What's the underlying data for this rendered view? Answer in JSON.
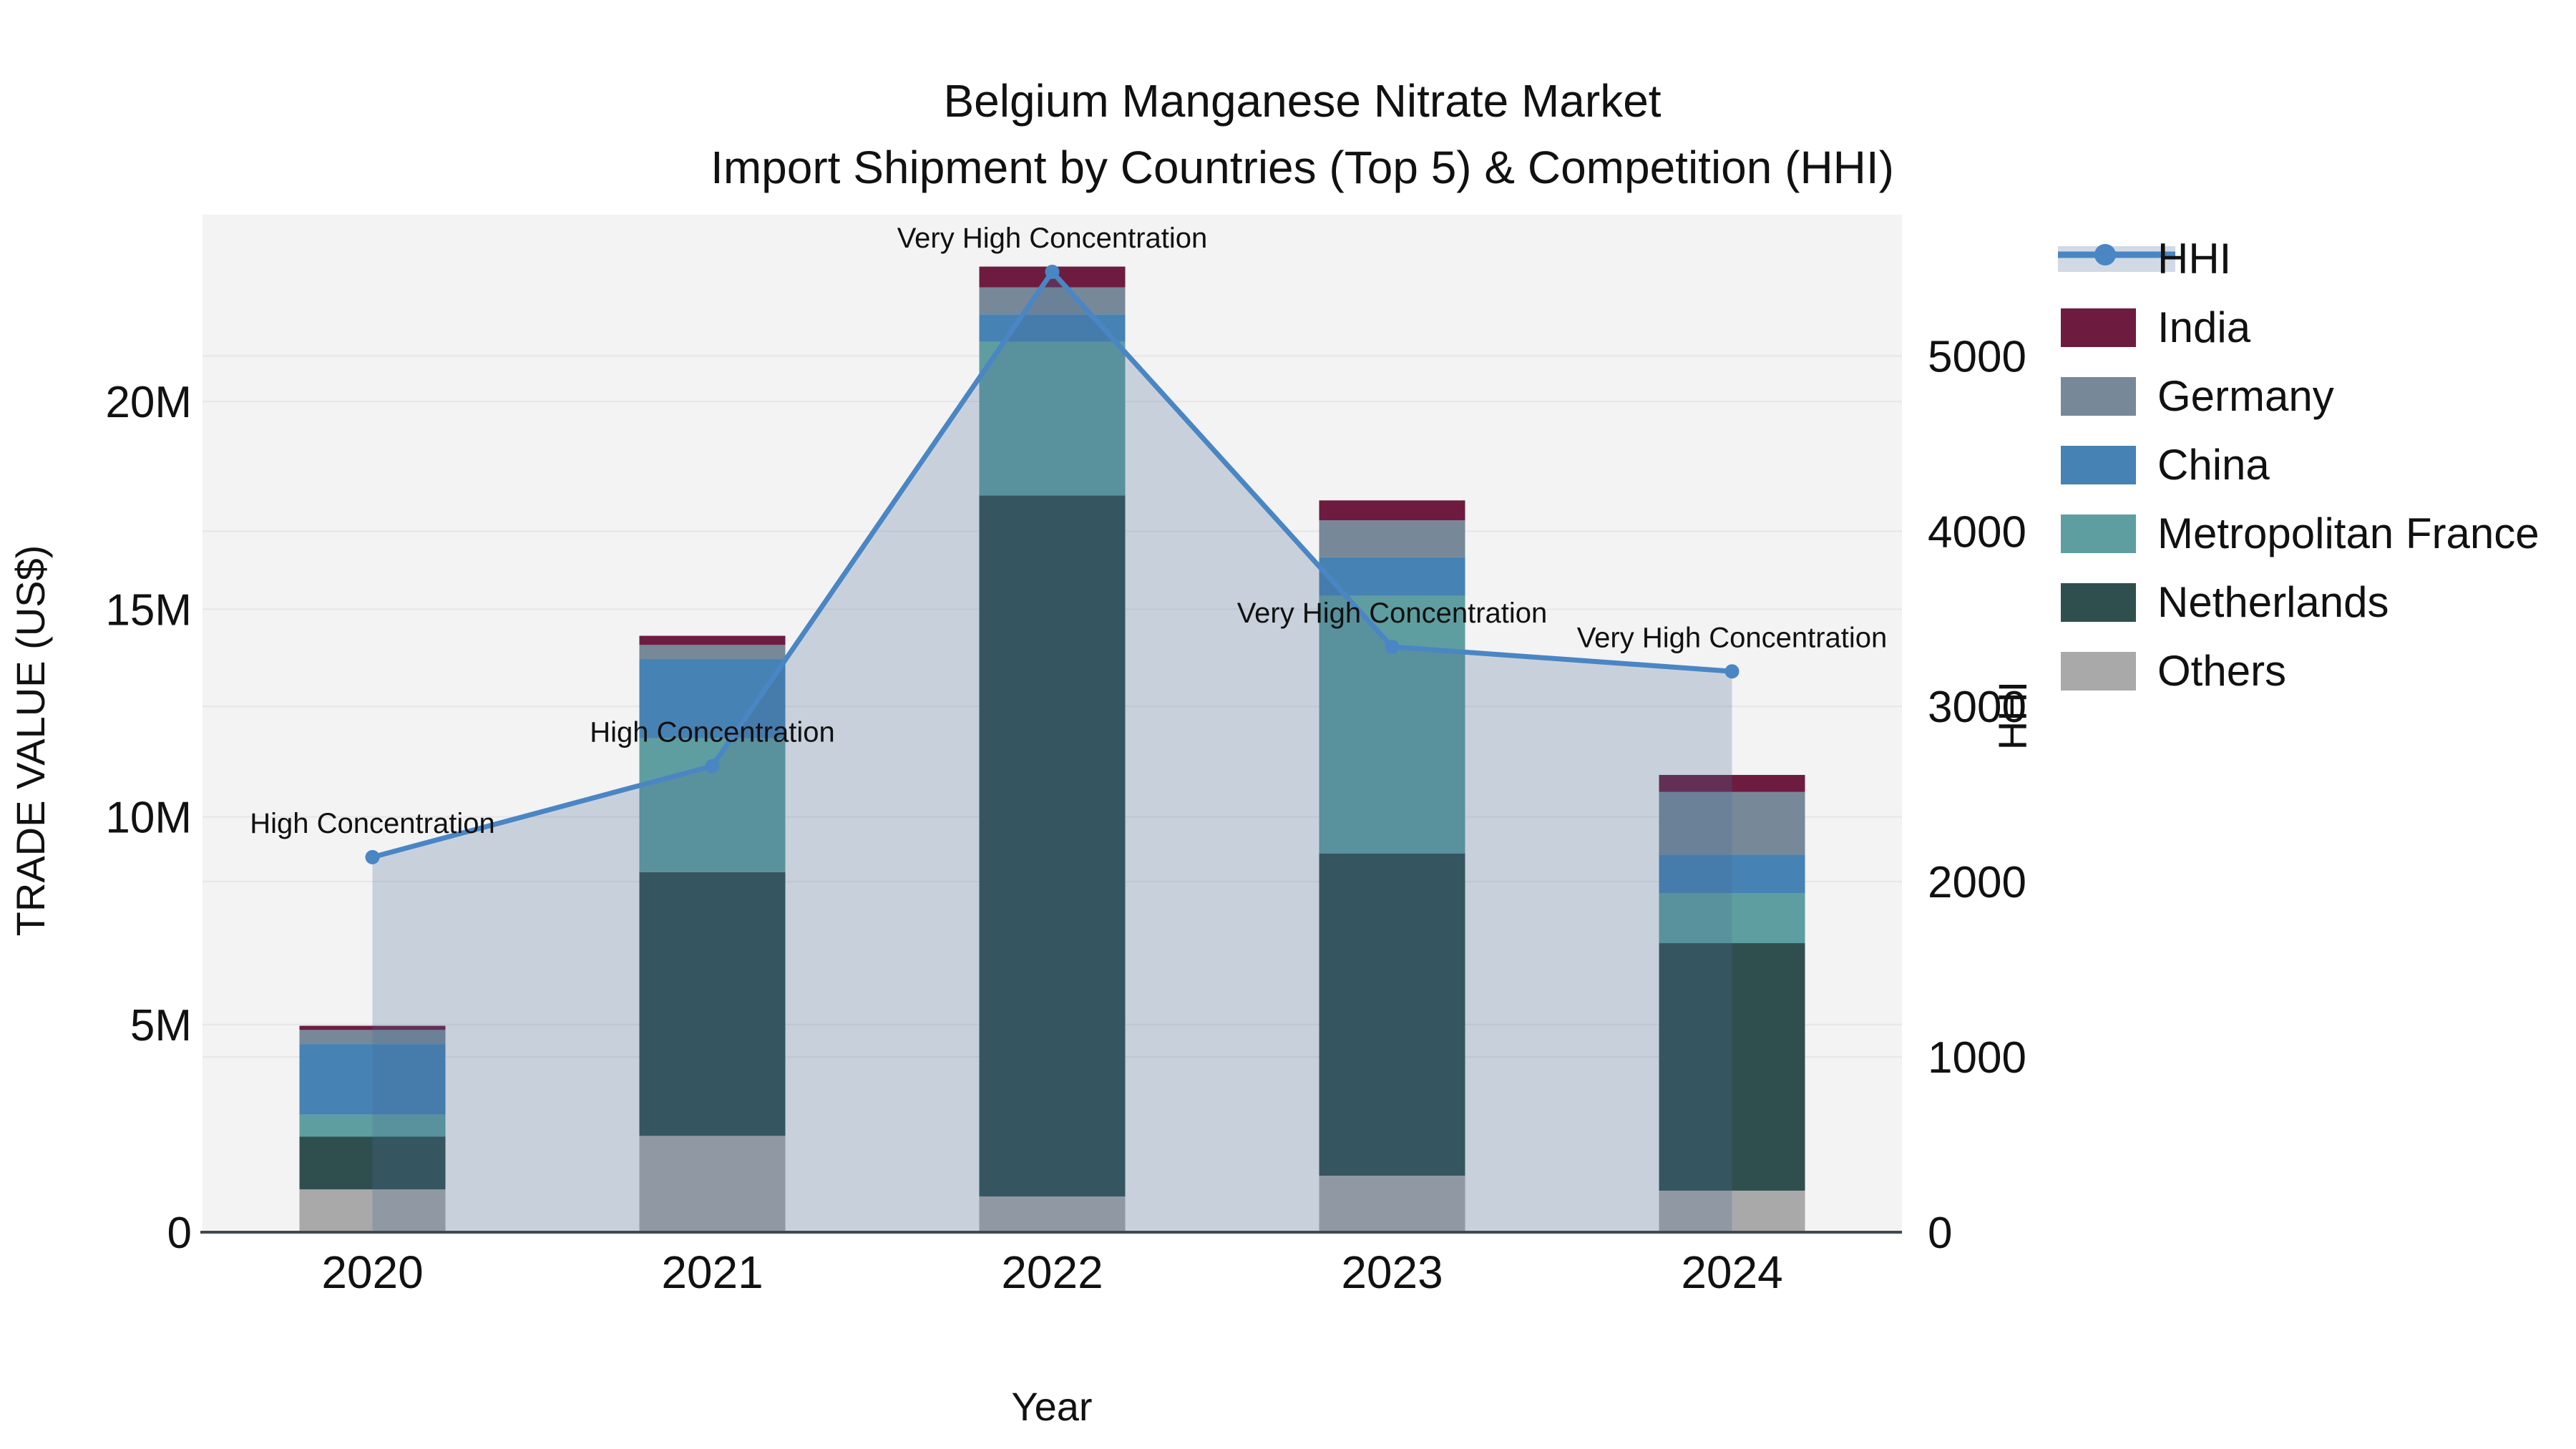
{
  "title": {
    "line1": "Belgium Manganese Nitrate Market",
    "line2": "Import Shipment by Countries (Top 5) & Competition (HHI)"
  },
  "axes": {
    "x_title": "Year",
    "y_left_title": "TRADE VALUE (US$)",
    "y_right_title": "HHI",
    "y_left_ticks": [
      {
        "value": 0,
        "label": "0"
      },
      {
        "value": 5,
        "label": "5M"
      },
      {
        "value": 10,
        "label": "10M"
      },
      {
        "value": 15,
        "label": "15M"
      },
      {
        "value": 20,
        "label": "20M"
      }
    ],
    "y_right_ticks": [
      {
        "value": 0,
        "label": "0"
      },
      {
        "value": 1000,
        "label": "1000"
      },
      {
        "value": 2000,
        "label": "2000"
      },
      {
        "value": 3000,
        "label": "3000"
      },
      {
        "value": 4000,
        "label": "4000"
      },
      {
        "value": 5000,
        "label": "5000"
      }
    ]
  },
  "legend": [
    {
      "label": "HHI",
      "type": "line",
      "color": "#4a86c4"
    },
    {
      "label": "India",
      "type": "swatch",
      "color": "#6d1c40"
    },
    {
      "label": "Germany",
      "type": "swatch",
      "color": "#778899"
    },
    {
      "label": "China",
      "type": "swatch",
      "color": "#4682b4"
    },
    {
      "label": "Metropolitan France",
      "type": "swatch",
      "color": "#5f9ea0"
    },
    {
      "label": "Netherlands",
      "type": "swatch",
      "color": "#2f4f4f"
    },
    {
      "label": "Others",
      "type": "swatch",
      "color": "#a9a9a9"
    }
  ],
  "chart_data": {
    "type": "bar+line",
    "title": "Belgium Manganese Nitrate Market — Import Shipment by Countries (Top 5) & Competition (HHI)",
    "categories": [
      "2020",
      "2021",
      "2022",
      "2023",
      "2024"
    ],
    "bar_unit": "million US$",
    "bar_stack_order_bottom_to_top": [
      "Others",
      "Netherlands",
      "Metropolitan France",
      "China",
      "Germany",
      "India"
    ],
    "series": [
      {
        "name": "Others",
        "color": "#a9a9a9",
        "values": [
          1.03,
          2.32,
          0.86,
          1.36,
          1.0
        ]
      },
      {
        "name": "Netherlands",
        "color": "#2f4f4f",
        "values": [
          1.27,
          6.35,
          16.88,
          7.76,
          5.96
        ]
      },
      {
        "name": "Metropolitan France",
        "color": "#5f9ea0",
        "values": [
          0.53,
          3.22,
          3.7,
          6.2,
          1.2
        ]
      },
      {
        "name": "China",
        "color": "#4682b4",
        "values": [
          1.7,
          1.91,
          0.66,
          0.93,
          0.93
        ]
      },
      {
        "name": "Germany",
        "color": "#778899",
        "values": [
          0.34,
          0.34,
          0.65,
          0.89,
          1.51
        ]
      },
      {
        "name": "India",
        "color": "#6d1c40",
        "values": [
          0.1,
          0.22,
          0.5,
          0.48,
          0.41
        ]
      }
    ],
    "bar_totals": [
      4.97,
      14.36,
      23.25,
      17.62,
      11.01
    ],
    "line_series": {
      "name": "HHI",
      "color": "#4a86c4",
      "fill": "rgba(70,106,146,0.25)",
      "values": [
        2140,
        2660,
        5480,
        3340,
        3200
      ]
    },
    "annotations": [
      {
        "year": "2020",
        "text": "High Concentration"
      },
      {
        "year": "2021",
        "text": "High Concentration"
      },
      {
        "year": "2022",
        "text": "Very High Concentration"
      },
      {
        "year": "2023",
        "text": "Very High Concentration"
      },
      {
        "year": "2024",
        "text": "Very High Concentration"
      }
    ],
    "xlabel": "Year",
    "ylabel_left": "TRADE VALUE (US$)",
    "ylabel_right": "HHI",
    "ylim_left": [
      0,
      24.5
    ],
    "ylim_right": [
      0,
      5806
    ],
    "grid": true,
    "legend_position": "right",
    "plot_bg": "#f3f3f3",
    "grid_color": "#e6e6e6",
    "axisline_color": "#42484e"
  }
}
